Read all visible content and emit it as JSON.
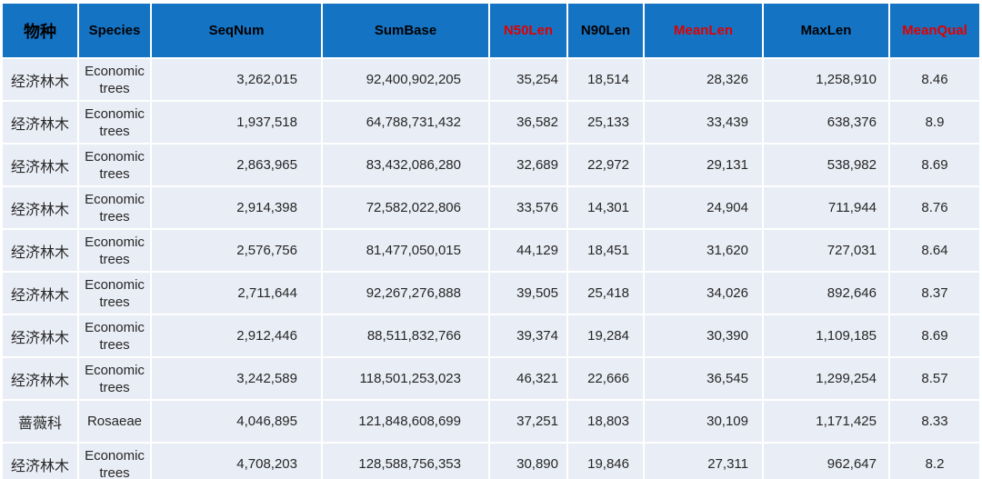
{
  "colors": {
    "header_bg": "#1573C4",
    "row_bg": "#E9EDF5",
    "red_header_text": "#E00000",
    "black_header_text": "#000000",
    "body_text": "#262626"
  },
  "chart_data": {
    "type": "table",
    "title": "",
    "columns": [
      {
        "key": "species-cn",
        "label": "物种",
        "red": false
      },
      {
        "key": "species-en",
        "label": "Species",
        "red": false
      },
      {
        "key": "seqnum",
        "label": "SeqNum",
        "red": false
      },
      {
        "key": "sumbase",
        "label": "SumBase",
        "red": false
      },
      {
        "key": "n50len",
        "label": "N50Len",
        "red": true
      },
      {
        "key": "n90len",
        "label": "N90Len",
        "red": false
      },
      {
        "key": "meanlen",
        "label": "MeanLen",
        "red": true
      },
      {
        "key": "maxlen",
        "label": "MaxLen",
        "red": false
      },
      {
        "key": "meanqual",
        "label": "MeanQual",
        "red": true
      }
    ],
    "rows": [
      [
        "经济林木",
        "Economic trees",
        "3,262,015",
        "92,400,902,205",
        "35,254",
        "18,514",
        "28,326",
        "1,258,910",
        "8.46"
      ],
      [
        "经济林木",
        "Economic trees",
        "1,937,518",
        "64,788,731,432",
        "36,582",
        "25,133",
        "33,439",
        "638,376",
        "8.9"
      ],
      [
        "经济林木",
        "Economic trees",
        "2,863,965",
        "83,432,086,280",
        "32,689",
        "22,972",
        "29,131",
        "538,982",
        "8.69"
      ],
      [
        "经济林木",
        "Economic trees",
        "2,914,398",
        "72,582,022,806",
        "33,576",
        "14,301",
        "24,904",
        "711,944",
        "8.76"
      ],
      [
        "经济林木",
        "Economic trees",
        "2,576,756",
        "81,477,050,015",
        "44,129",
        "18,451",
        "31,620",
        "727,031",
        "8.64"
      ],
      [
        "经济林木",
        "Economic trees",
        "2,711,644",
        "92,267,276,888",
        "39,505",
        "25,418",
        "34,026",
        "892,646",
        "8.37"
      ],
      [
        "经济林木",
        "Economic trees",
        "2,912,446",
        "88,511,832,766",
        "39,374",
        "19,284",
        "30,390",
        "1,109,185",
        "8.69"
      ],
      [
        "经济林木",
        "Economic trees",
        "3,242,589",
        "118,501,253,023",
        "46,321",
        "22,666",
        "36,545",
        "1,299,254",
        "8.57"
      ],
      [
        "蔷薇科",
        "Rosaeae",
        "4,046,895",
        "121,848,608,699",
        "37,251",
        "18,803",
        "30,109",
        "1,171,425",
        "8.33"
      ],
      [
        "经济林木",
        "Economic trees",
        "4,708,203",
        "128,588,756,353",
        "30,890",
        "19,846",
        "27,311",
        "962,647",
        "8.2"
      ]
    ]
  }
}
